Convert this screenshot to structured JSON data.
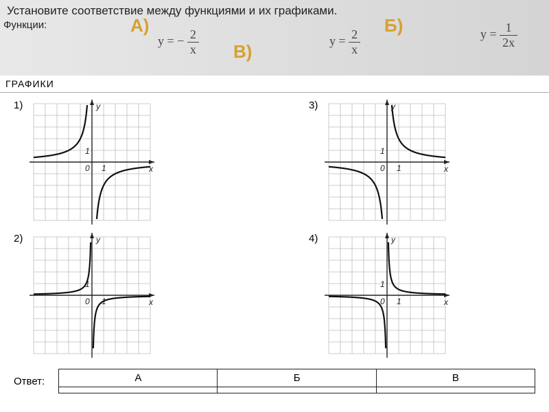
{
  "header": {
    "instruction": "Установите соответствие между функциями и их графиками.",
    "functions_label": "Функции:",
    "letters": {
      "a": "А)",
      "b": "Б)",
      "v": "В)"
    },
    "formulas": {
      "a": {
        "lhs": "y",
        "sign": "= −",
        "num": "2",
        "den": "x"
      },
      "b": {
        "lhs": "y",
        "sign": "=",
        "num": "2",
        "den": "x"
      },
      "v": {
        "lhs": "y",
        "sign": "=",
        "num": "1",
        "den": "2x"
      }
    }
  },
  "graphs_title": "ГРАФИКИ",
  "graphs": {
    "grid_color": "#bbbbbb",
    "axis_color": "#222222",
    "curve_color": "#111111",
    "bg": "#ffffff",
    "cell": 17,
    "size": 190,
    "items": [
      {
        "n": "1)",
        "type": "neg",
        "k": 2
      },
      {
        "n": "3)",
        "type": "pos",
        "k": 2
      },
      {
        "n": "2)",
        "type": "neg",
        "k": 0.5
      },
      {
        "n": "4)",
        "type": "pos",
        "k": 0.5
      }
    ]
  },
  "answer": {
    "label": "Ответ:",
    "cols": [
      "А",
      "Б",
      "В"
    ]
  }
}
